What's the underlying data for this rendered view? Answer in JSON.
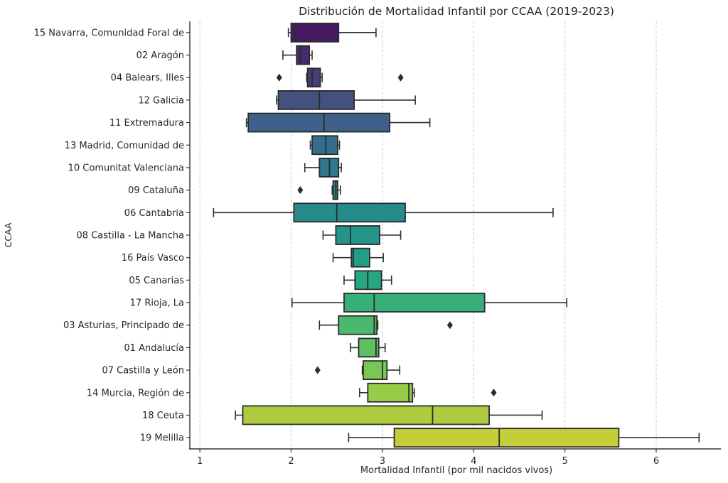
{
  "figure": {
    "title": "Distribución de Mortalidad Infantil por CCAA (2019-2023)",
    "xlabel": "Mortalidad Infantil (por mil nacidos vivos)",
    "ylabel": "CCAA"
  },
  "colors": {
    "box_edge": "#2b2b2b",
    "whisker": "#2f2f2f",
    "median": "#2b2b2b",
    "outlier": "#2b2b2b",
    "grid": "#cccccc",
    "spine": "#333333",
    "text": "#262626",
    "background": "#ffffff"
  },
  "chart_data": {
    "type": "box",
    "orientation": "horizontal",
    "title": "Distribución de Mortalidad Infantil por CCAA (2019-2023)",
    "xlabel": "Mortalidad Infantil (por mil nacidos vivos)",
    "ylabel": "CCAA",
    "xlim": [
      0.89,
      6.74
    ],
    "xticks": [
      1,
      2,
      3,
      4,
      5,
      6
    ],
    "grid": "vertical dashed gridlines at each x tick",
    "legend": "none",
    "categories": [
      "15 Navarra, Comunidad Foral de",
      "02 Aragón",
      "04 Balears, Illes",
      "12 Galicia",
      "11 Extremadura",
      "13 Madrid, Comunidad de",
      "10 Comunitat Valenciana",
      "09 Cataluña",
      "06 Cantabria",
      "08 Castilla - La Mancha",
      "16 País Vasco",
      "05 Canarias",
      "17 Rioja, La",
      "03 Asturias, Principado de",
      "01 Andalucía",
      "07 Castilla y León",
      "14 Murcia, Región de",
      "18 Ceuta",
      "19 Melilla"
    ],
    "boxes": [
      {
        "name": "15 Navarra, Comunidad Foral de",
        "color": "#451a61",
        "whisker_low": 1.97,
        "q1": 2.0,
        "median": 2.05,
        "q3": 2.52,
        "whisker_high": 2.93,
        "outliers": []
      },
      {
        "name": "02 Aragón",
        "color": "#462c6d",
        "whisker_low": 1.91,
        "q1": 2.06,
        "median": 2.1,
        "q3": 2.2,
        "whisker_high": 2.23,
        "outliers": []
      },
      {
        "name": "04 Balears, Illes",
        "color": "#463e75",
        "whisker_low": 2.17,
        "q1": 2.18,
        "median": 2.23,
        "q3": 2.32,
        "whisker_high": 2.34,
        "outliers": [
          1.87,
          3.2
        ]
      },
      {
        "name": "12 Galicia",
        "color": "#44507e",
        "whisker_low": 1.84,
        "q1": 1.86,
        "median": 2.31,
        "q3": 2.69,
        "whisker_high": 3.36,
        "outliers": []
      },
      {
        "name": "11 Extremadura",
        "color": "#3f6089",
        "whisker_low": 1.51,
        "q1": 1.53,
        "median": 2.36,
        "q3": 3.08,
        "whisker_high": 3.52,
        "outliers": []
      },
      {
        "name": "13 Madrid, Comunidad de",
        "color": "#356d8c",
        "whisker_low": 2.21,
        "q1": 2.23,
        "median": 2.38,
        "q3": 2.51,
        "whisker_high": 2.53,
        "outliers": []
      },
      {
        "name": "10 Comunitat Valenciana",
        "color": "#2f788d",
        "whisker_low": 2.15,
        "q1": 2.31,
        "median": 2.42,
        "q3": 2.52,
        "whisker_high": 2.55,
        "outliers": []
      },
      {
        "name": "09 Cataluña",
        "color": "#2b828d",
        "whisker_low": 2.45,
        "q1": 2.46,
        "median": 2.49,
        "q3": 2.51,
        "whisker_high": 2.54,
        "outliers": [
          2.1
        ]
      },
      {
        "name": "06 Cantabria",
        "color": "#288b8b",
        "whisker_low": 1.15,
        "q1": 2.03,
        "median": 2.5,
        "q3": 3.25,
        "whisker_high": 4.87,
        "outliers": []
      },
      {
        "name": "08 Castilla - La Mancha",
        "color": "#249489",
        "whisker_low": 2.35,
        "q1": 2.49,
        "median": 2.65,
        "q3": 2.97,
        "whisker_high": 3.2,
        "outliers": []
      },
      {
        "name": "16 País Vasco",
        "color": "#229d86",
        "whisker_low": 2.46,
        "q1": 2.66,
        "median": 2.68,
        "q3": 2.86,
        "whisker_high": 3.01,
        "outliers": []
      },
      {
        "name": "05 Canarias",
        "color": "#28a680",
        "whisker_low": 2.58,
        "q1": 2.7,
        "median": 2.84,
        "q3": 2.99,
        "whisker_high": 3.1,
        "outliers": []
      },
      {
        "name": "17 Rioja, La",
        "color": "#37af78",
        "whisker_low": 2.01,
        "q1": 2.58,
        "median": 2.91,
        "q3": 4.12,
        "whisker_high": 5.02,
        "outliers": []
      },
      {
        "name": "03 Asturias, Principado de",
        "color": "#4ab86d",
        "whisker_low": 2.31,
        "q1": 2.52,
        "median": 2.91,
        "q3": 2.94,
        "whisker_high": 2.95,
        "outliers": [
          3.74
        ]
      },
      {
        "name": "01 Andalucía",
        "color": "#5fc061",
        "whisker_low": 2.65,
        "q1": 2.74,
        "median": 2.93,
        "q3": 2.96,
        "whisker_high": 3.03,
        "outliers": []
      },
      {
        "name": "07 Castilla y León",
        "color": "#79c755",
        "whisker_low": 2.78,
        "q1": 2.79,
        "median": 3.0,
        "q3": 3.05,
        "whisker_high": 3.19,
        "outliers": [
          2.29
        ]
      },
      {
        "name": "14 Murcia, Región de",
        "color": "#95cd48",
        "whisker_low": 2.75,
        "q1": 2.84,
        "median": 3.29,
        "q3": 3.33,
        "whisker_high": 3.35,
        "outliers": [
          4.22
        ]
      },
      {
        "name": "18 Ceuta",
        "color": "#aecb3f",
        "whisker_low": 1.39,
        "q1": 1.47,
        "median": 3.55,
        "q3": 4.17,
        "whisker_high": 4.75,
        "outliers": []
      },
      {
        "name": "19 Melilla",
        "color": "#c5cd39",
        "whisker_low": 2.63,
        "q1": 3.13,
        "median": 4.28,
        "q3": 5.59,
        "whisker_high": 6.47,
        "outliers": []
      }
    ]
  }
}
